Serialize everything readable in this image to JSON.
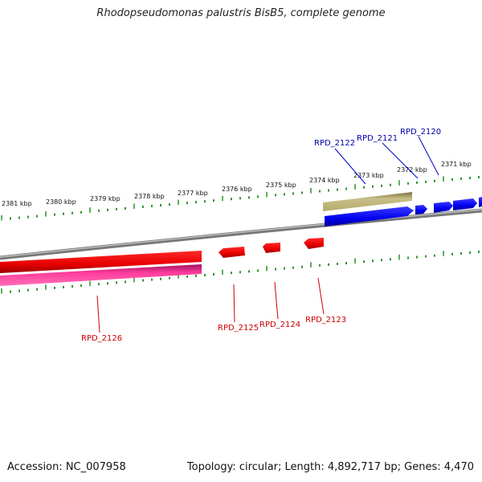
{
  "title": "Rhodopseudomonas palustris BisB5, complete genome",
  "footer": {
    "accession": "Accession: NC_007958",
    "topology": "Topology: circular; Length: 4,892,717 bp; Genes: 4,470"
  },
  "colors": {
    "forward_gene": "#0000ee",
    "reverse_gene": "#ee0000",
    "reverse_cds": "#ff3d9c",
    "forward_cds_gray": "#b5ab6c",
    "backbone": "#888888",
    "ticks": "#1a8a1a",
    "forward_label": "#0000aa",
    "reverse_label": "#cc0000"
  },
  "ticks": {
    "labels": [
      "2371 kbp",
      "2372 kbp",
      "2373 kbp",
      "2374 kbp",
      "2375 kbp",
      "2376 kbp",
      "2377 kbp",
      "2378 kbp",
      "2379 kbp",
      "2380 kbp",
      "2381 kbp"
    ]
  },
  "genes": {
    "forward": [
      "RPD_2120",
      "RPD_2121",
      "RPD_2122"
    ],
    "reverse": [
      "RPD_2123",
      "RPD_2124",
      "RPD_2125",
      "RPD_2126"
    ]
  }
}
